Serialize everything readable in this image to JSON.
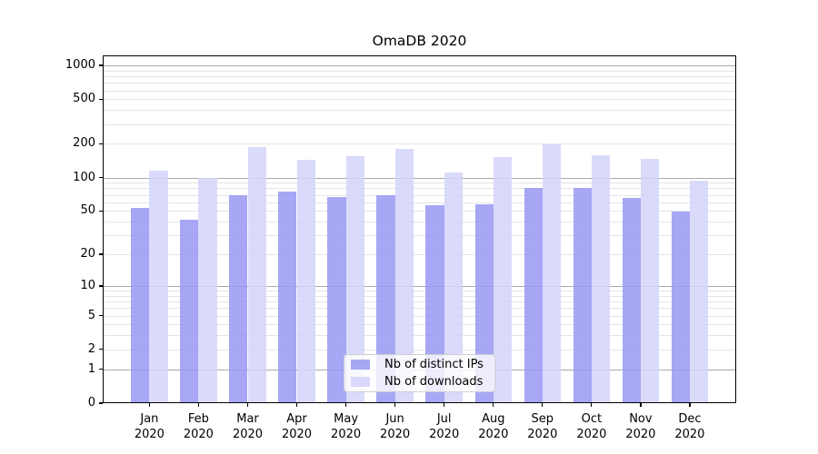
{
  "title": "OmaDB 2020",
  "chart_data": {
    "type": "bar",
    "title": "OmaDB 2020",
    "y_scale": "log1p",
    "ylim": [
      0,
      1227
    ],
    "y_ticks": [
      0,
      1,
      2,
      5,
      10,
      20,
      50,
      100,
      200,
      500,
      1000
    ],
    "y_major_gridlines": [
      1,
      10,
      100,
      1000
    ],
    "grid": "both",
    "legend_position": "lower-center",
    "categories": [
      "Jan",
      "Feb",
      "Mar",
      "Apr",
      "May",
      "Jun",
      "Jul",
      "Aug",
      "Sep",
      "Oct",
      "Nov",
      "Dec"
    ],
    "category_year": "2020",
    "series": [
      {
        "name": "Nb of distinct IPs",
        "color": "#9a9af4",
        "values": [
          53,
          42,
          70,
          75,
          67,
          69,
          56,
          57,
          81,
          80,
          66,
          49
        ]
      },
      {
        "name": "Nb of downloads",
        "color": "#d4d4fa",
        "values": [
          115,
          100,
          187,
          144,
          154,
          181,
          112,
          152,
          197,
          157,
          147,
          94
        ]
      }
    ]
  },
  "colors": {
    "background": "#ffffff",
    "axis": "#000000",
    "major_grid": "#a9a9a9",
    "minor_grid": "#e5e5e5"
  }
}
